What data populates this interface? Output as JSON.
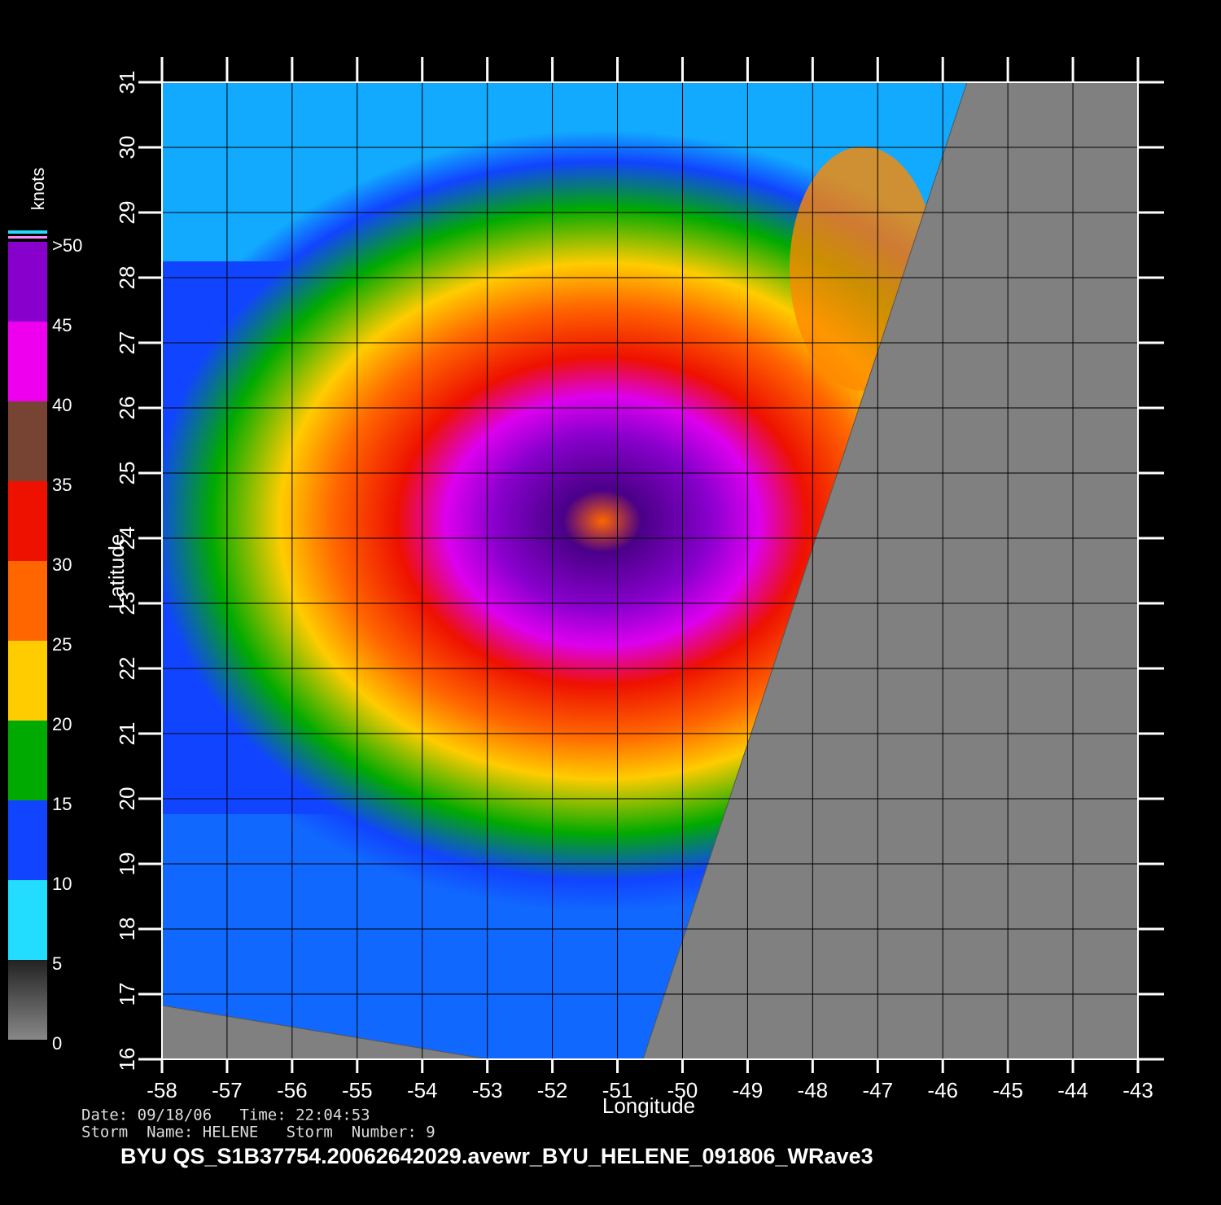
{
  "map": {
    "xlabel": "Longitude",
    "ylabel": "Latitude",
    "xlim": [
      -58,
      -43
    ],
    "ylim": [
      16,
      31
    ],
    "xticks": [
      -58,
      -57,
      -56,
      -55,
      -54,
      -53,
      -52,
      -51,
      -50,
      -49,
      -48,
      -47,
      -46,
      -45,
      -44,
      -43
    ],
    "yticks": [
      16,
      17,
      18,
      19,
      20,
      21,
      22,
      23,
      24,
      25,
      26,
      27,
      28,
      29,
      30,
      31
    ],
    "grid": true,
    "colorbar": {
      "unit": "knots",
      "lim": [
        0,
        50
      ],
      "ticks": [
        0,
        5,
        10,
        15,
        20,
        25,
        30,
        35,
        40,
        45,
        {
          "value": 50,
          "label": ">50"
        }
      ],
      "colors": [
        "#555555",
        "#22ddff",
        "#1144ff",
        "#00aa00",
        "#ffcc00",
        "#ff6600",
        "#ee1100",
        "#774433",
        "#ee00ee",
        "#8800cc"
      ]
    },
    "info": [
      "Date: 09/18/06   Time: 22:04:53",
      "Storm  Name: HELENE   Storm  Number: 9"
    ],
    "title": "BYU  QS_S1B37754.20062642029.avewr_BYU_HELENE_091806_WRave3"
  }
}
